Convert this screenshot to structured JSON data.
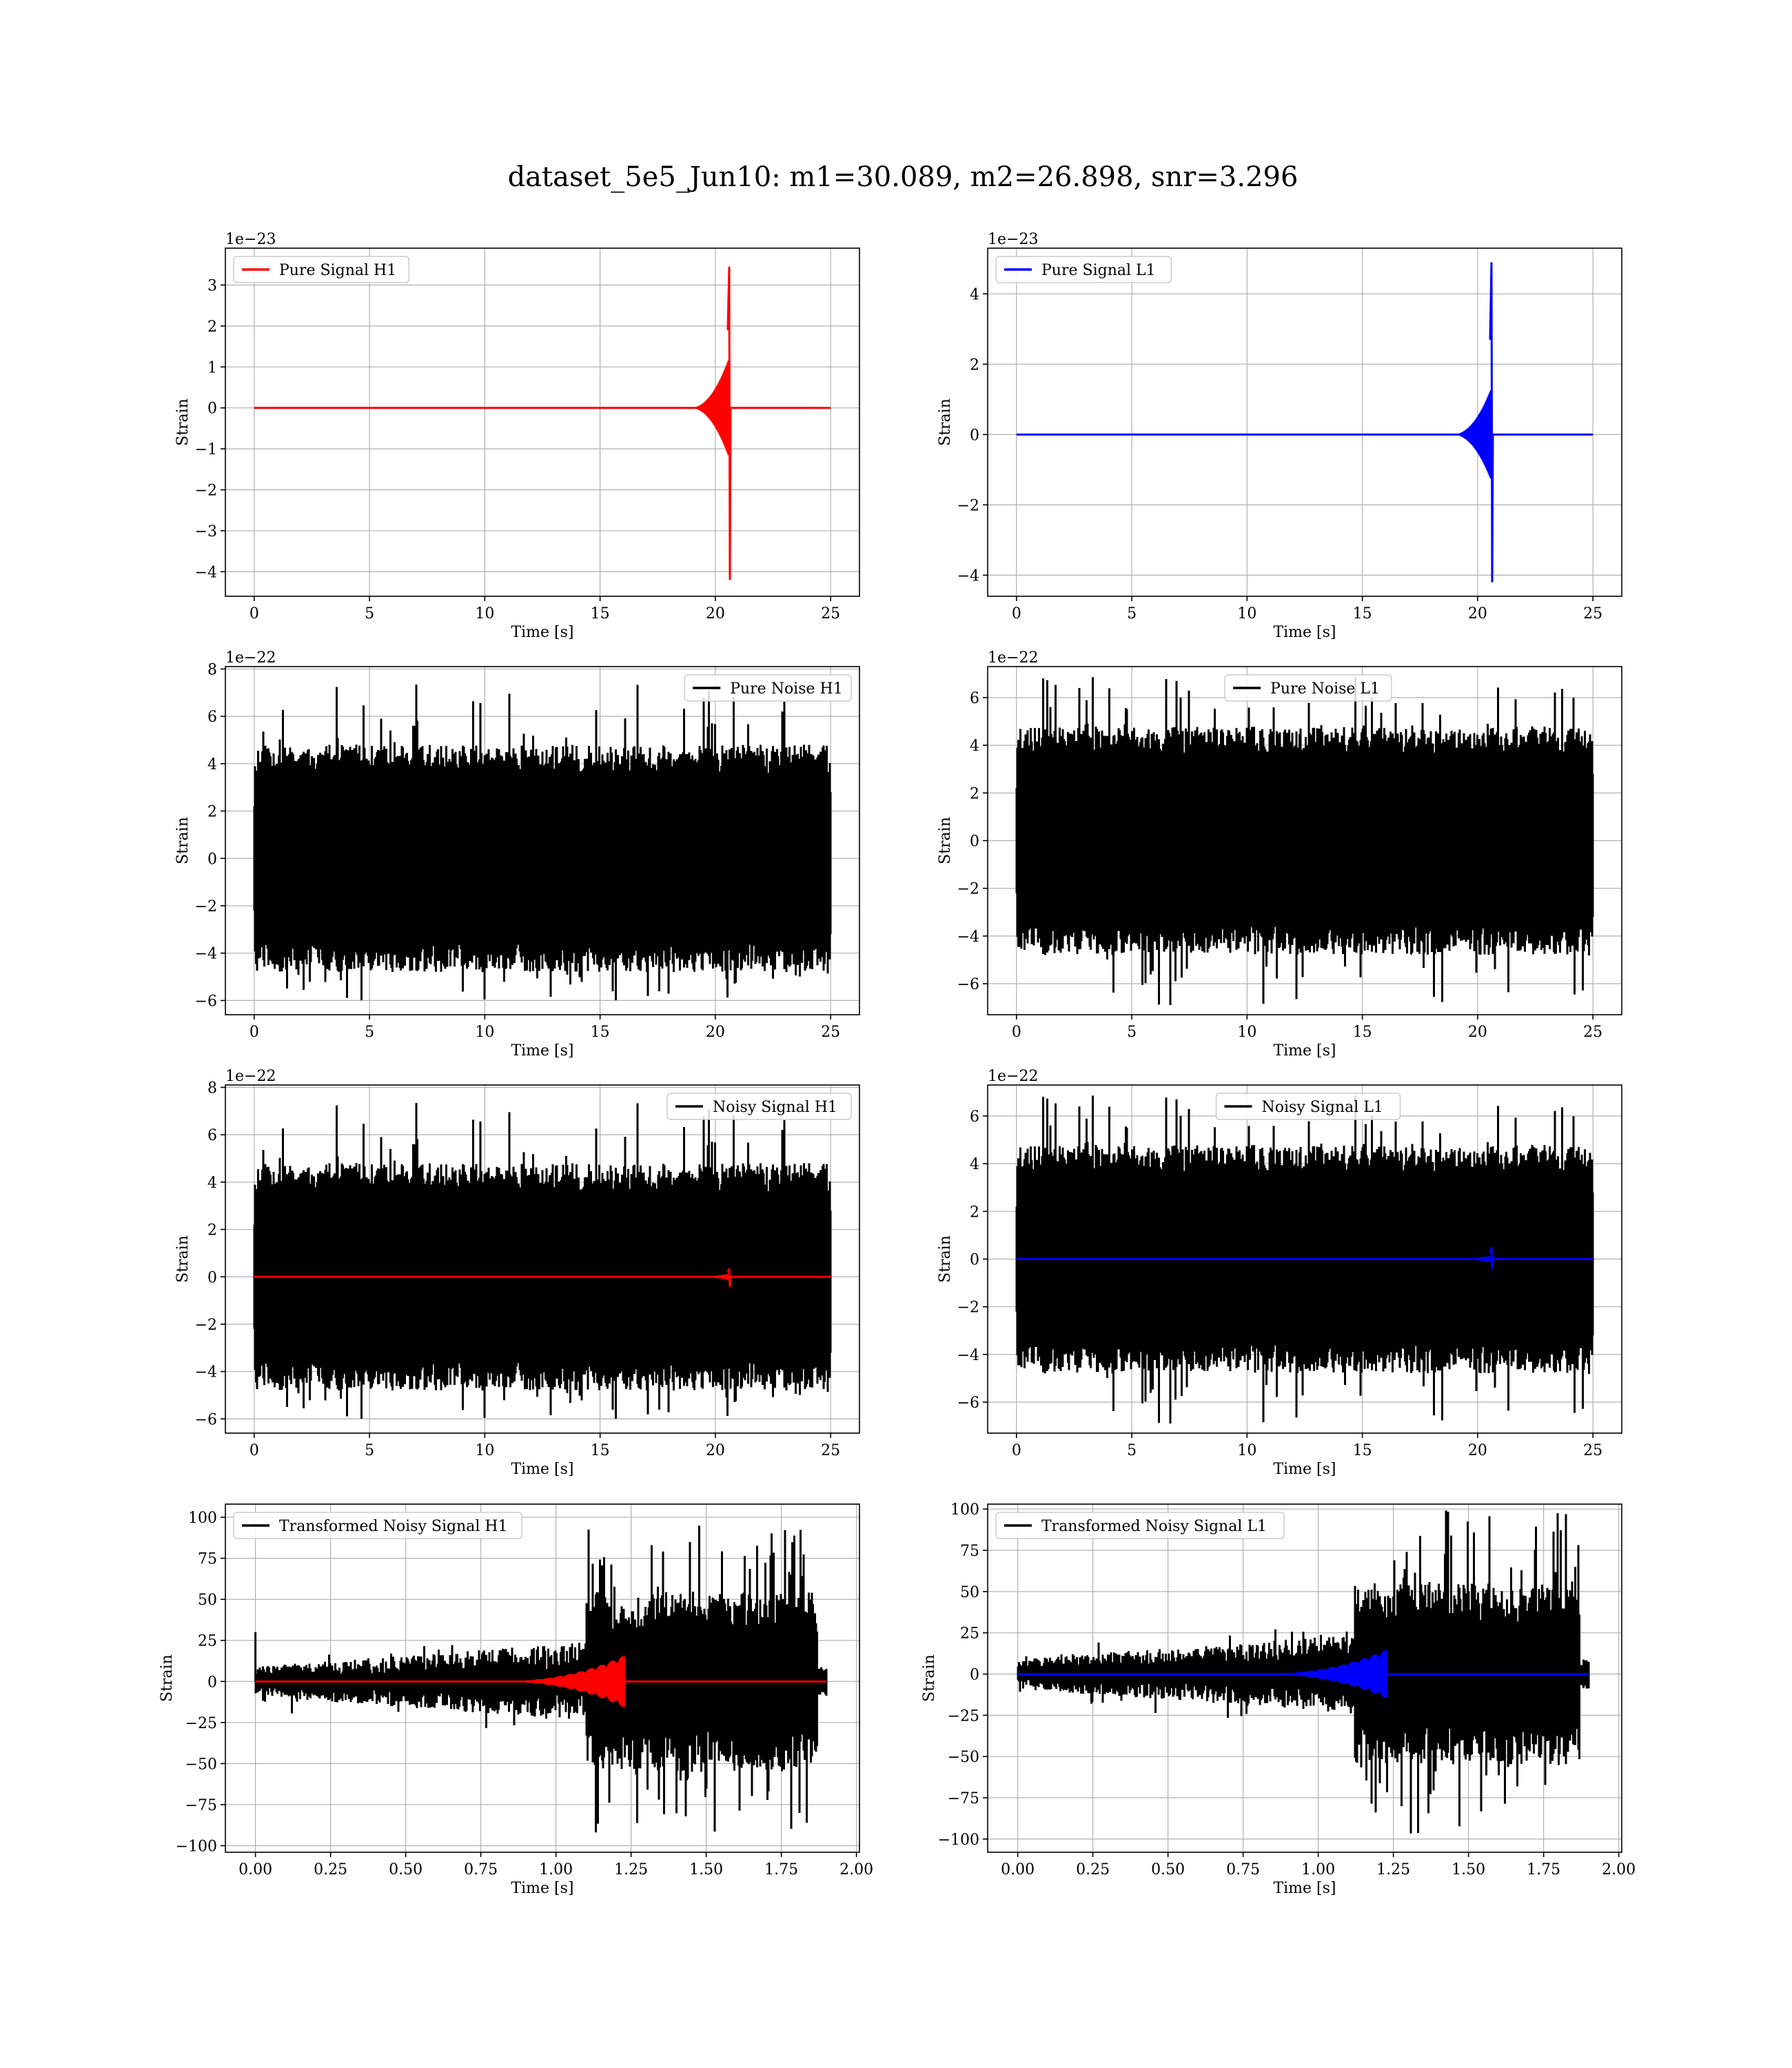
{
  "figure": {
    "title": "dataset_5e5_Jun10: m1=30.089, m2=26.898, snr=3.296"
  },
  "chart_data": [
    {
      "id": "pure-signal-h1",
      "type": "line",
      "legend": {
        "label": "Pure Signal H1",
        "color": "#ff0000",
        "position": "upper-left"
      },
      "xlabel": "Time [s]",
      "ylabel": "Strain",
      "offset_label": "1e−23",
      "grid": true,
      "xlim": [
        -1.25,
        26.25
      ],
      "ylim": [
        -4.6,
        3.9
      ],
      "xticks": [
        0,
        5,
        10,
        15,
        20,
        25
      ],
      "xtick_labels": [
        "0",
        "5",
        "10",
        "15",
        "20",
        "25"
      ],
      "yticks": [
        -4,
        -3,
        -2,
        -1,
        0,
        1,
        2,
        3
      ],
      "ytick_labels": [
        "−4",
        "−3",
        "−2",
        "−1",
        "0",
        "1",
        "2",
        "3"
      ],
      "series": [
        {
          "kind": "chirp",
          "color": "#ff0000",
          "t_start": 0,
          "t_end": 25,
          "t_merger": 20.6,
          "peak_pos": 3.45,
          "peak_neg": -4.2,
          "pre_amp": 1.2
        }
      ]
    },
    {
      "id": "pure-signal-l1",
      "type": "line",
      "legend": {
        "label": "Pure Signal L1",
        "color": "#0000ff",
        "position": "upper-left"
      },
      "xlabel": "Time [s]",
      "ylabel": "Strain",
      "offset_label": "1e−23",
      "grid": true,
      "xlim": [
        -1.25,
        26.25
      ],
      "ylim": [
        -4.6,
        5.3
      ],
      "xticks": [
        0,
        5,
        10,
        15,
        20,
        25
      ],
      "xtick_labels": [
        "0",
        "5",
        "10",
        "15",
        "20",
        "25"
      ],
      "yticks": [
        -4,
        -2,
        0,
        2,
        4
      ],
      "ytick_labels": [
        "−4",
        "−2",
        "0",
        "2",
        "4"
      ],
      "series": [
        {
          "kind": "chirp",
          "color": "#0000ff",
          "t_start": 0,
          "t_end": 25,
          "t_merger": 20.6,
          "peak_pos": 4.9,
          "peak_neg": -4.2,
          "pre_amp": 1.3
        }
      ]
    },
    {
      "id": "pure-noise-h1",
      "type": "line",
      "legend": {
        "label": "Pure Noise H1",
        "color": "#000000",
        "position": "upper-right"
      },
      "xlabel": "Time [s]",
      "ylabel": "Strain",
      "offset_label": "1e−22",
      "grid": true,
      "xlim": [
        -1.25,
        26.25
      ],
      "ylim": [
        -6.6,
        8.1
      ],
      "xticks": [
        0,
        5,
        10,
        15,
        20,
        25
      ],
      "xtick_labels": [
        "0",
        "5",
        "10",
        "15",
        "20",
        "25"
      ],
      "yticks": [
        -6,
        -4,
        -2,
        0,
        2,
        4,
        6,
        8
      ],
      "ytick_labels": [
        "−6",
        "−4",
        "−2",
        "0",
        "2",
        "4",
        "6",
        "8"
      ],
      "series": [
        {
          "kind": "noise",
          "color": "#000000",
          "t_start": 0,
          "t_end": 25,
          "max": 7.4,
          "min": -6.0,
          "band": 3.0,
          "spike_hi": 4.2,
          "spike_lo": -4.4,
          "seed": 11
        }
      ]
    },
    {
      "id": "pure-noise-l1",
      "type": "line",
      "legend": {
        "label": "Pure Noise L1",
        "color": "#000000",
        "position": "upper-center"
      },
      "xlabel": "Time [s]",
      "ylabel": "Strain",
      "offset_label": "1e−22",
      "grid": true,
      "xlim": [
        -1.25,
        26.25
      ],
      "ylim": [
        -7.3,
        7.3
      ],
      "xticks": [
        0,
        5,
        10,
        15,
        20,
        25
      ],
      "xtick_labels": [
        "0",
        "5",
        "10",
        "15",
        "20",
        "25"
      ],
      "yticks": [
        -6,
        -4,
        -2,
        0,
        2,
        4,
        6
      ],
      "ytick_labels": [
        "−6",
        "−4",
        "−2",
        "0",
        "2",
        "4",
        "6"
      ],
      "series": [
        {
          "kind": "noise",
          "color": "#000000",
          "t_start": 0,
          "t_end": 25,
          "max": 6.9,
          "min": -6.9,
          "band": 3.0,
          "spike_hi": 4.4,
          "spike_lo": -4.2,
          "seed": 23
        }
      ]
    },
    {
      "id": "noisy-signal-h1",
      "type": "line",
      "legend": {
        "label": "Noisy Signal H1",
        "color": "#000000",
        "position": "upper-right"
      },
      "xlabel": "Time [s]",
      "ylabel": "Strain",
      "offset_label": "1e−22",
      "grid": true,
      "xlim": [
        -1.25,
        26.25
      ],
      "ylim": [
        -6.6,
        8.1
      ],
      "xticks": [
        0,
        5,
        10,
        15,
        20,
        25
      ],
      "xtick_labels": [
        "0",
        "5",
        "10",
        "15",
        "20",
        "25"
      ],
      "yticks": [
        -6,
        -4,
        -2,
        0,
        2,
        4,
        6,
        8
      ],
      "ytick_labels": [
        "−6",
        "−4",
        "−2",
        "0",
        "2",
        "4",
        "6",
        "8"
      ],
      "series": [
        {
          "kind": "noise",
          "color": "#000000",
          "t_start": 0,
          "t_end": 25,
          "max": 7.4,
          "min": -6.0,
          "band": 3.0,
          "spike_hi": 4.2,
          "spike_lo": -4.4,
          "seed": 11
        },
        {
          "kind": "chirp",
          "color": "#ff0000",
          "t_start": 0,
          "t_end": 25,
          "t_merger": 20.6,
          "peak_pos": 0.35,
          "peak_neg": -0.42,
          "pre_amp": 0.12
        }
      ]
    },
    {
      "id": "noisy-signal-l1",
      "type": "line",
      "legend": {
        "label": "Noisy Signal L1",
        "color": "#000000",
        "position": "upper-center"
      },
      "xlabel": "Time [s]",
      "ylabel": "Strain",
      "offset_label": "1e−22",
      "grid": true,
      "xlim": [
        -1.25,
        26.25
      ],
      "ylim": [
        -7.3,
        7.3
      ],
      "xticks": [
        0,
        5,
        10,
        15,
        20,
        25
      ],
      "xtick_labels": [
        "0",
        "5",
        "10",
        "15",
        "20",
        "25"
      ],
      "yticks": [
        -6,
        -4,
        -2,
        0,
        2,
        4,
        6
      ],
      "ytick_labels": [
        "−6",
        "−4",
        "−2",
        "0",
        "2",
        "4",
        "6"
      ],
      "series": [
        {
          "kind": "noise",
          "color": "#000000",
          "t_start": 0,
          "t_end": 25,
          "max": 6.9,
          "min": -6.9,
          "band": 3.0,
          "spike_hi": 4.4,
          "spike_lo": -4.2,
          "seed": 23
        },
        {
          "kind": "chirp",
          "color": "#0000ff",
          "t_start": 0,
          "t_end": 25,
          "t_merger": 20.6,
          "peak_pos": 0.49,
          "peak_neg": -0.42,
          "pre_amp": 0.13
        }
      ]
    },
    {
      "id": "transformed-noisy-signal-h1",
      "type": "line",
      "legend": {
        "label": "Transformed Noisy Signal H1",
        "color": "#000000",
        "position": "upper-left"
      },
      "xlabel": "Time [s]",
      "ylabel": "Strain",
      "offset_label": "",
      "grid": true,
      "xlim": [
        -0.1,
        2.01
      ],
      "ylim": [
        -104,
        108
      ],
      "xticks": [
        0.0,
        0.25,
        0.5,
        0.75,
        1.0,
        1.25,
        1.5,
        1.75,
        2.0
      ],
      "xtick_labels": [
        "0.00",
        "0.25",
        "0.50",
        "0.75",
        "1.00",
        "1.25",
        "1.50",
        "1.75",
        "2.00"
      ],
      "yticks": [
        -100,
        -75,
        -50,
        -25,
        0,
        25,
        50,
        75,
        100
      ],
      "ytick_labels": [
        "−100",
        "−75",
        "−50",
        "−25",
        "0",
        "25",
        "50",
        "75",
        "100"
      ],
      "series": [
        {
          "kind": "tnoise",
          "color": "#000000",
          "t_start": 0,
          "t_end": 1.9,
          "t_step": 1.1,
          "max": 98,
          "min": -95,
          "seed": 37
        },
        {
          "kind": "tchirp",
          "color": "#ff0000",
          "t_start": 0,
          "t_end": 1.9,
          "t_merger": 1.23,
          "peak": 16
        }
      ]
    },
    {
      "id": "transformed-noisy-signal-l1",
      "type": "line",
      "legend": {
        "label": "Transformed Noisy Signal L1",
        "color": "#000000",
        "position": "upper-left"
      },
      "xlabel": "Time [s]",
      "ylabel": "Strain",
      "offset_label": "",
      "grid": true,
      "xlim": [
        -0.1,
        2.01
      ],
      "ylim": [
        -108,
        103
      ],
      "xticks": [
        0.0,
        0.25,
        0.5,
        0.75,
        1.0,
        1.25,
        1.5,
        1.75,
        2.0
      ],
      "xtick_labels": [
        "0.00",
        "0.25",
        "0.50",
        "0.75",
        "1.00",
        "1.25",
        "1.50",
        "1.75",
        "2.00"
      ],
      "yticks": [
        -100,
        -75,
        -50,
        -25,
        0,
        25,
        50,
        75,
        100
      ],
      "ytick_labels": [
        "−100",
        "−75",
        "−50",
        "−25",
        "0",
        "25",
        "50",
        "75",
        "100"
      ],
      "series": [
        {
          "kind": "tnoise",
          "color": "#000000",
          "t_start": 0,
          "t_end": 1.9,
          "t_step": 1.12,
          "max": 100,
          "min": -98,
          "seed": 53
        },
        {
          "kind": "tchirp",
          "color": "#0000ff",
          "t_start": 0,
          "t_end": 1.9,
          "t_merger": 1.23,
          "peak": 15
        }
      ]
    }
  ]
}
